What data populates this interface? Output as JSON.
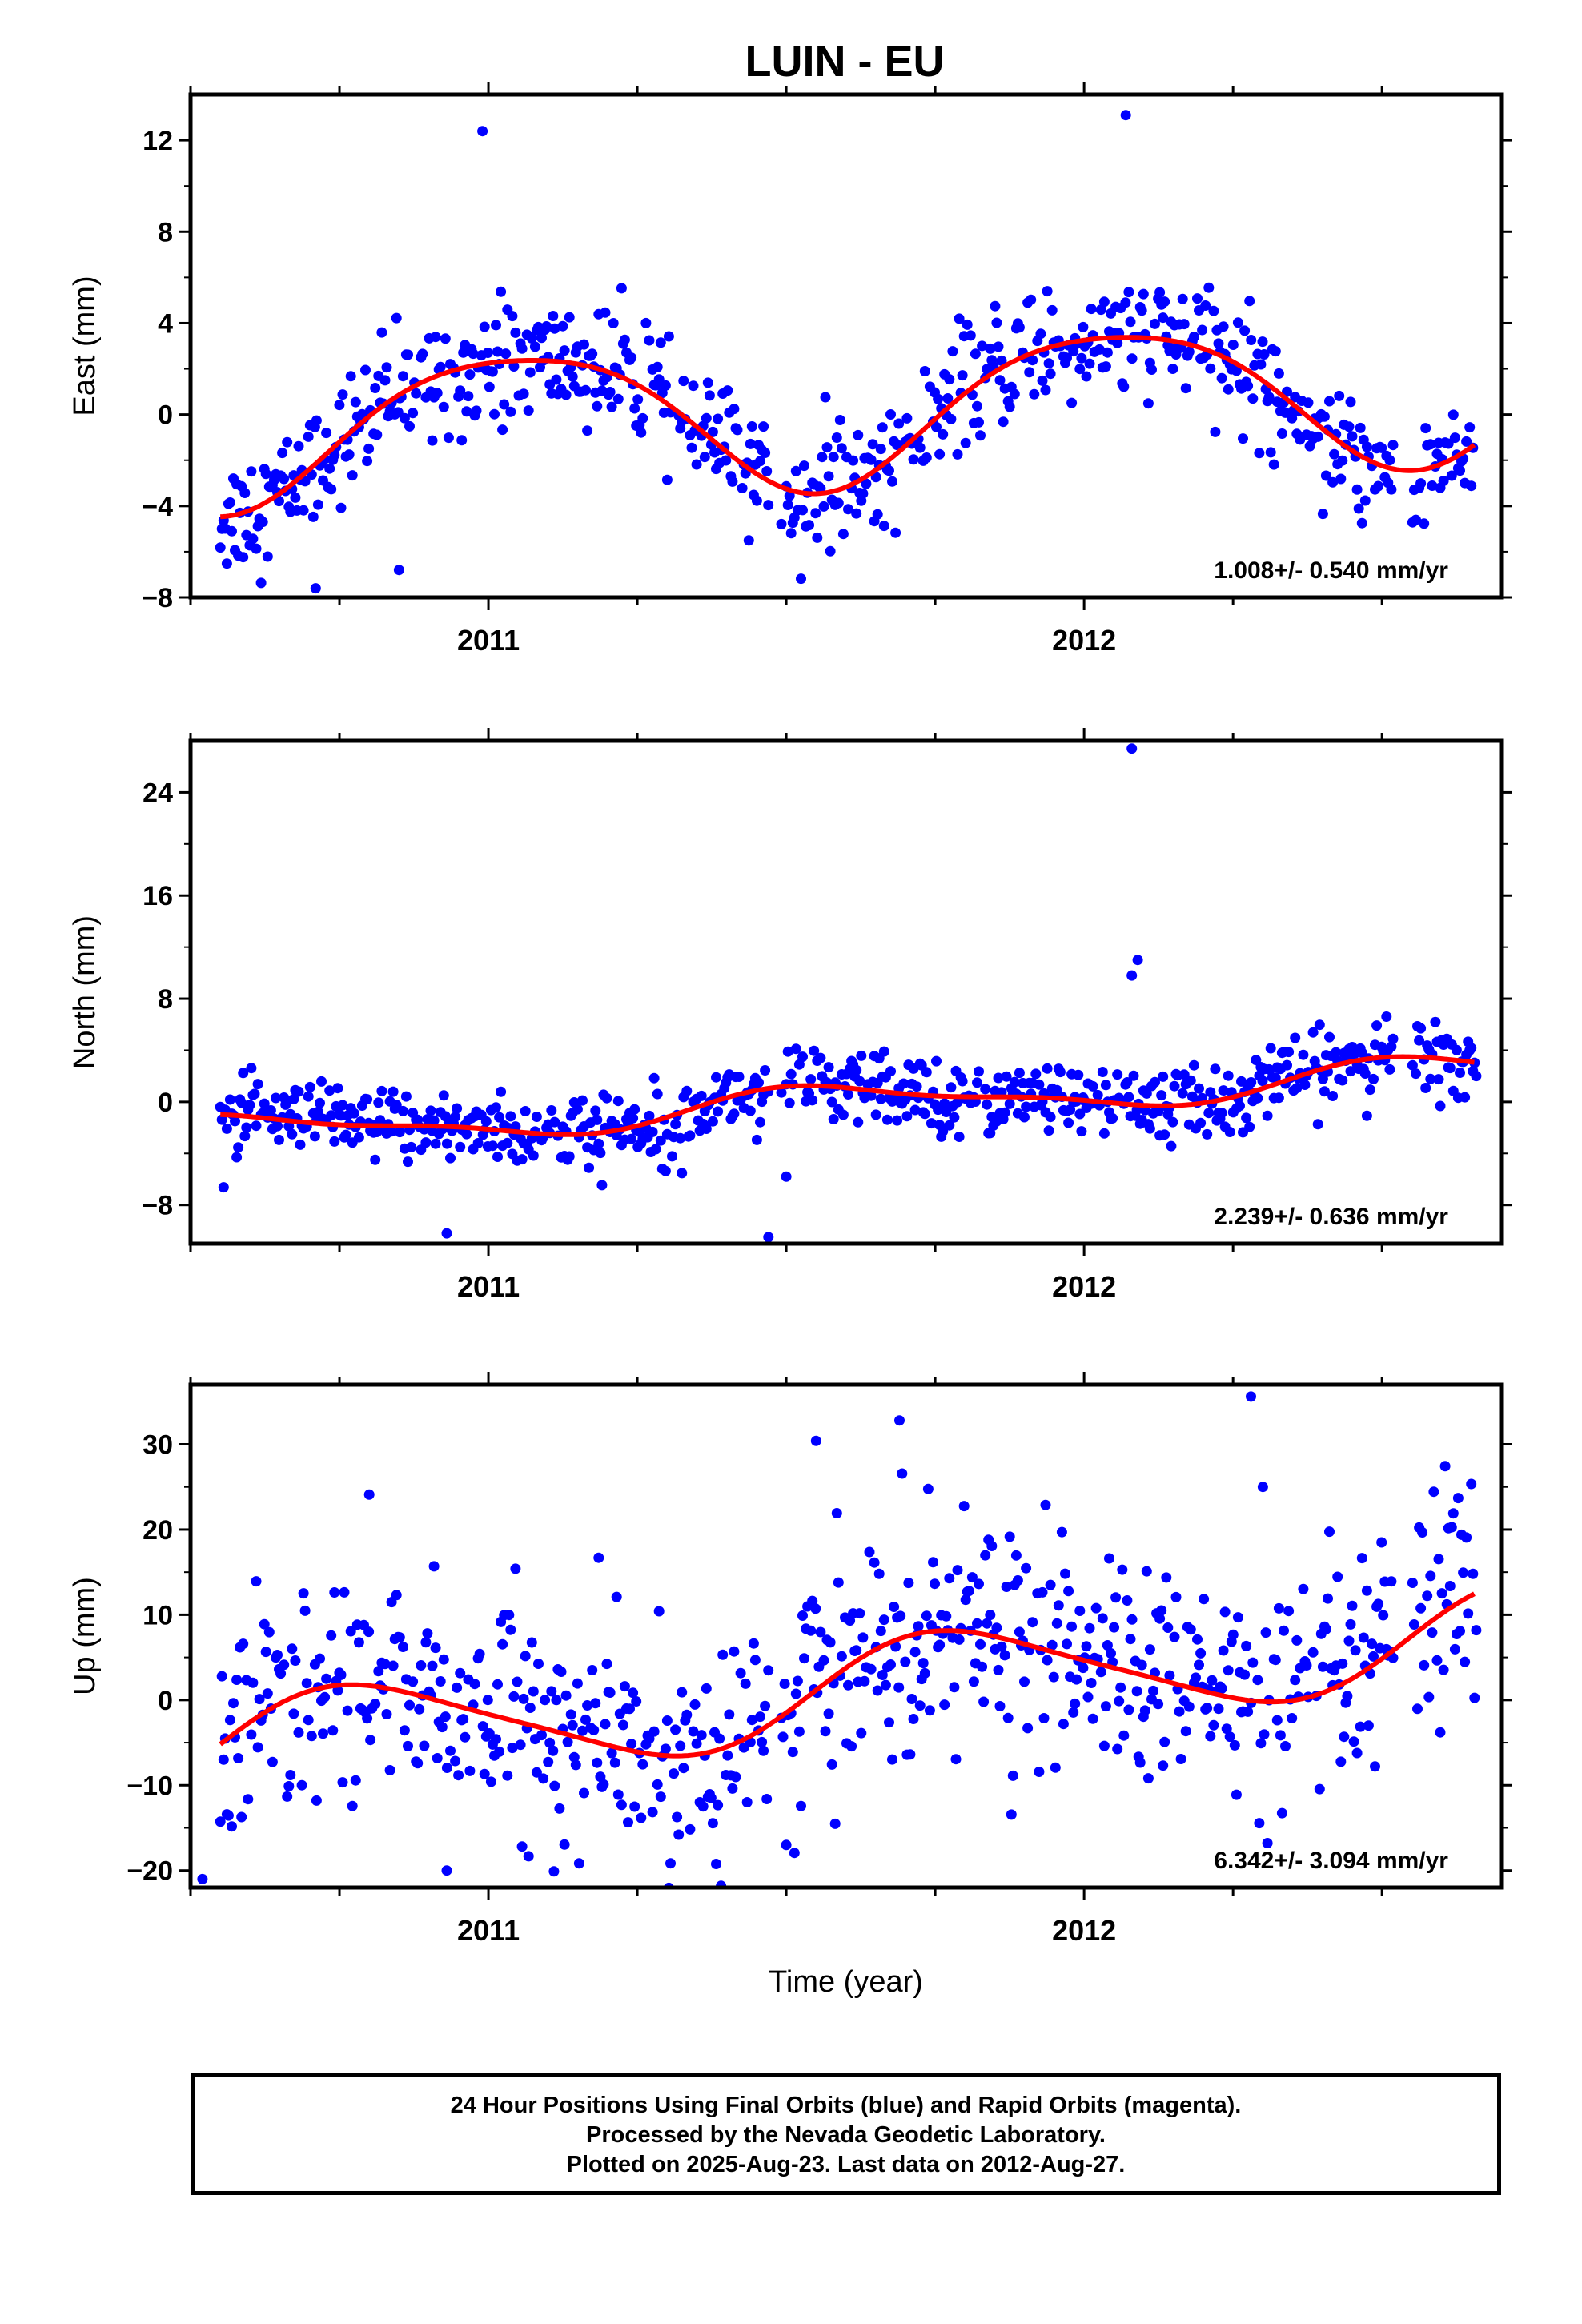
{
  "title": "LUIN - EU",
  "colors": {
    "points": "#0000ff",
    "fit": "#ff0000",
    "frame": "#000000"
  },
  "chart_data": [
    {
      "type": "scatter",
      "ylabel": "East (mm)",
      "xlabel": "",
      "ylim": [
        -8,
        14
      ],
      "yticks": [
        -8,
        -4,
        0,
        4,
        8,
        12
      ],
      "xlim": [
        2010.5,
        2012.7
      ],
      "xticks": [
        2011,
        2012
      ],
      "annotation": "1.008+/- 0.540 mm/yr",
      "fit": {
        "trend": 1.008,
        "offset": 0.15,
        "annual_sin": 1.0,
        "annual_cos": 3.0,
        "semi_sin": -0.3,
        "semi_cos": -0.4,
        "noise": 1.3
      },
      "outliers": [
        [
          2010.99,
          12.4
        ],
        [
          2012.07,
          13.1
        ],
        [
          2010.71,
          -7.6
        ],
        [
          2010.85,
          -6.8
        ]
      ]
    },
    {
      "type": "scatter",
      "ylabel": "North (mm)",
      "xlabel": "",
      "ylim": [
        -11,
        28
      ],
      "yticks": [
        -8,
        0,
        8,
        16,
        24
      ],
      "xlim": [
        2010.5,
        2012.7
      ],
      "xticks": [
        2011,
        2012
      ],
      "annotation": "2.239+/- 0.636 mm/yr",
      "fit": {
        "trend": 2.239,
        "offset": -0.3,
        "annual_sin": -0.6,
        "annual_cos": -1.1,
        "semi_sin": -0.2,
        "semi_cos": 0.4,
        "noise": 1.4
      },
      "outliers": [
        [
          2012.08,
          27.4
        ],
        [
          2012.09,
          11.0
        ],
        [
          2012.08,
          9.8
        ],
        [
          2010.93,
          -10.2
        ],
        [
          2011.47,
          -10.5
        ],
        [
          2011.5,
          -5.8
        ]
      ]
    },
    {
      "type": "scatter",
      "ylabel": "Up (mm)",
      "xlabel": "Time (year)",
      "ylim": [
        -22,
        37
      ],
      "yticks": [
        -20,
        -10,
        0,
        10,
        20,
        30
      ],
      "xlim": [
        2010.5,
        2012.7
      ],
      "xticks": [
        2011,
        2012
      ],
      "annotation": "6.342+/- 3.094 mm/yr",
      "fit": {
        "trend": 6.342,
        "offset": 0.5,
        "annual_sin": -5.5,
        "annual_cos": 1.5,
        "semi_sin": 0.8,
        "semi_cos": -0.5,
        "noise": 6.5
      },
      "outliers": [
        [
          2012.28,
          35.6
        ],
        [
          2011.69,
          32.8
        ],
        [
          2011.55,
          30.4
        ],
        [
          2012.3,
          25.0
        ],
        [
          2010.8,
          24.1
        ],
        [
          2010.52,
          -21.0
        ],
        [
          2010.93,
          -20.0
        ],
        [
          2011.11,
          -20.1
        ]
      ]
    }
  ],
  "footer": {
    "line1": "24 Hour Positions Using Final Orbits (blue) and Rapid Orbits (magenta).",
    "line2": "Processed by the Nevada Geodetic Laboratory.",
    "line3": "Plotted on 2025-Aug-23. Last data on 2012-Aug-27."
  }
}
